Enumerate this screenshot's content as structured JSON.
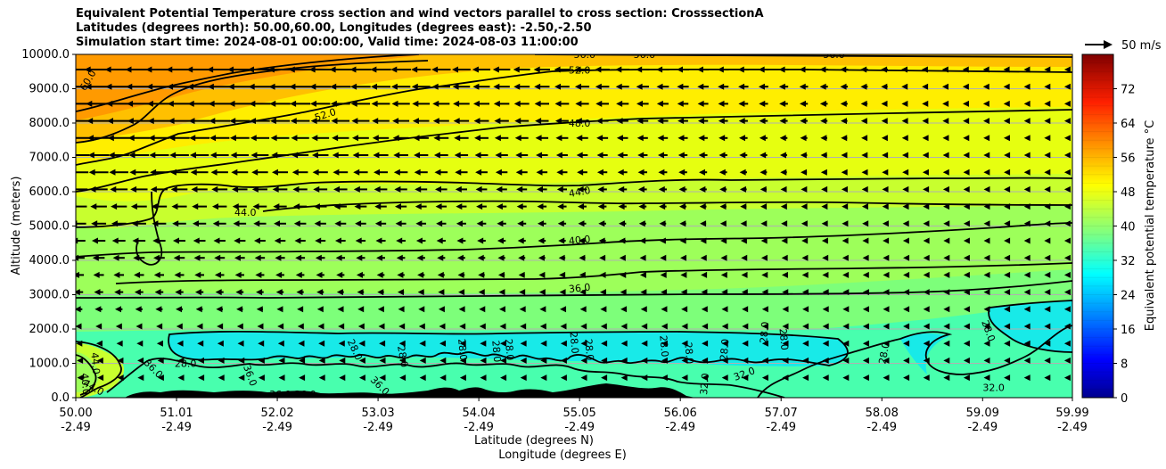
{
  "title": {
    "line1": "Equivalent Potential Temperature cross section and wind vectors parallel to cross section: CrosssectionA",
    "line2": "Latitudes (degrees north): 50.00,60.00, Longitudes (degrees east): -2.50,-2.50",
    "line3": "Simulation start time: 2024-08-01 00:00:00, Valid time: 2024-08-03 11:00:00"
  },
  "chart_data": {
    "type": "heatmap",
    "title": "Equivalent Potential Temperature cross section and wind vectors parallel to cross section: CrosssectionA",
    "ylabel": "Altitude (meters)",
    "xlabel": "Latitude (degrees N)",
    "xlabel2": "Longitude (degrees E)",
    "ylim": [
      0,
      10000
    ],
    "y_ticks": [
      "0.0",
      "1000.0",
      "2000.0",
      "3000.0",
      "4000.0",
      "5000.0",
      "6000.0",
      "7000.0",
      "8000.0",
      "9000.0",
      "10000.0"
    ],
    "x_ticks_lat": [
      "50.00",
      "51.01",
      "52.02",
      "53.03",
      "54.04",
      "55.05",
      "56.06",
      "57.07",
      "58.08",
      "59.09",
      "59.99"
    ],
    "x_ticks_lon": [
      "-2.49",
      "-2.49",
      "-2.49",
      "-2.49",
      "-2.49",
      "-2.49",
      "-2.49",
      "-2.49",
      "-2.49",
      "-2.49",
      "-2.49"
    ],
    "grid": "horizontal",
    "colorbar": {
      "label": "Equivalent potential temperature $^\\circ$C",
      "label_display": "Equivalent potential temperature °C",
      "range": [
        0,
        80
      ],
      "ticks": [
        "0",
        "8",
        "16",
        "24",
        "32",
        "40",
        "48",
        "56",
        "64",
        "72"
      ],
      "colormap": "jet",
      "colors": [
        "#00008f",
        "#0000ff",
        "#0080ff",
        "#00ffff",
        "#80ff80",
        "#ffff00",
        "#ff8000",
        "#ff0000",
        "#800000"
      ]
    },
    "wind_key": "50 m/s",
    "contour_labels": [
      {
        "text": "60.0",
        "x": 50.12,
        "y": 9250,
        "rot": -60
      },
      {
        "text": "56.0",
        "x": 55.1,
        "y": 10000,
        "rot": 0
      },
      {
        "text": "56.0",
        "x": 55.7,
        "y": 10000,
        "rot": 0
      },
      {
        "text": "56.0",
        "x": 57.6,
        "y": 10000,
        "rot": 0
      },
      {
        "text": "52.0",
        "x": 55.05,
        "y": 9550,
        "rot": 0
      },
      {
        "text": "52.0",
        "x": 52.5,
        "y": 8250,
        "rot": -18
      },
      {
        "text": "48.0",
        "x": 55.05,
        "y": 8000,
        "rot": 0
      },
      {
        "text": "44.0",
        "x": 55.05,
        "y": 6000,
        "rot": -10
      },
      {
        "text": "44.0",
        "x": 51.7,
        "y": 5400,
        "rot": 0
      },
      {
        "text": "40.0",
        "x": 55.05,
        "y": 4600,
        "rot": -6
      },
      {
        "text": "36.0",
        "x": 55.05,
        "y": 3200,
        "rot": -6
      },
      {
        "text": "28.0",
        "x": 51.1,
        "y": 1000,
        "rot": 0
      },
      {
        "text": "28.0",
        "x": 52.8,
        "y": 1400,
        "rot": 65
      },
      {
        "text": "28.0",
        "x": 53.28,
        "y": 1200,
        "rot": 80
      },
      {
        "text": "28.0",
        "x": 53.88,
        "y": 1400,
        "rot": 85
      },
      {
        "text": "28.0",
        "x": 54.22,
        "y": 1350,
        "rot": 85
      },
      {
        "text": "28.0",
        "x": 54.35,
        "y": 1400,
        "rot": 85
      },
      {
        "text": "28.0",
        "x": 55.0,
        "y": 1600,
        "rot": 85
      },
      {
        "text": "28.0",
        "x": 55.15,
        "y": 1400,
        "rot": 85
      },
      {
        "text": "28.0",
        "x": 55.9,
        "y": 1500,
        "rot": 85
      },
      {
        "text": "28.0",
        "x": 56.15,
        "y": 1300,
        "rot": 85
      },
      {
        "text": "28.0",
        "x": 56.5,
        "y": 1400,
        "rot": -85
      },
      {
        "text": "28.0",
        "x": 56.9,
        "y": 1900,
        "rot": -85
      },
      {
        "text": "28.0",
        "x": 57.1,
        "y": 1700,
        "rot": 85
      },
      {
        "text": "28.0",
        "x": 58.1,
        "y": 1300,
        "rot": -80
      },
      {
        "text": "28.0",
        "x": 59.15,
        "y": 1950,
        "rot": 70
      },
      {
        "text": "32.0",
        "x": 59.2,
        "y": 300,
        "rot": 0
      },
      {
        "text": "32.0",
        "x": 56.7,
        "y": 700,
        "rot": -20
      },
      {
        "text": "32.0",
        "x": 56.3,
        "y": 400,
        "rot": -85
      },
      {
        "text": "36.0",
        "x": 50.78,
        "y": 850,
        "rot": 45
      },
      {
        "text": "36.0",
        "x": 51.75,
        "y": 650,
        "rot": 70
      },
      {
        "text": "36.0",
        "x": 53.05,
        "y": 350,
        "rot": 45
      },
      {
        "text": "36.0",
        "x": 52.05,
        "y": 100,
        "rot": 0
      },
      {
        "text": "36.0",
        "x": 52.3,
        "y": 100,
        "rot": 0
      },
      {
        "text": "44.0",
        "x": 50.2,
        "y": 1000,
        "rot": 85
      },
      {
        "text": "44.0",
        "x": 50.18,
        "y": 300,
        "rot": 30
      },
      {
        "text": "40.0",
        "x": 50.1,
        "y": 400,
        "rot": 85
      }
    ]
  }
}
